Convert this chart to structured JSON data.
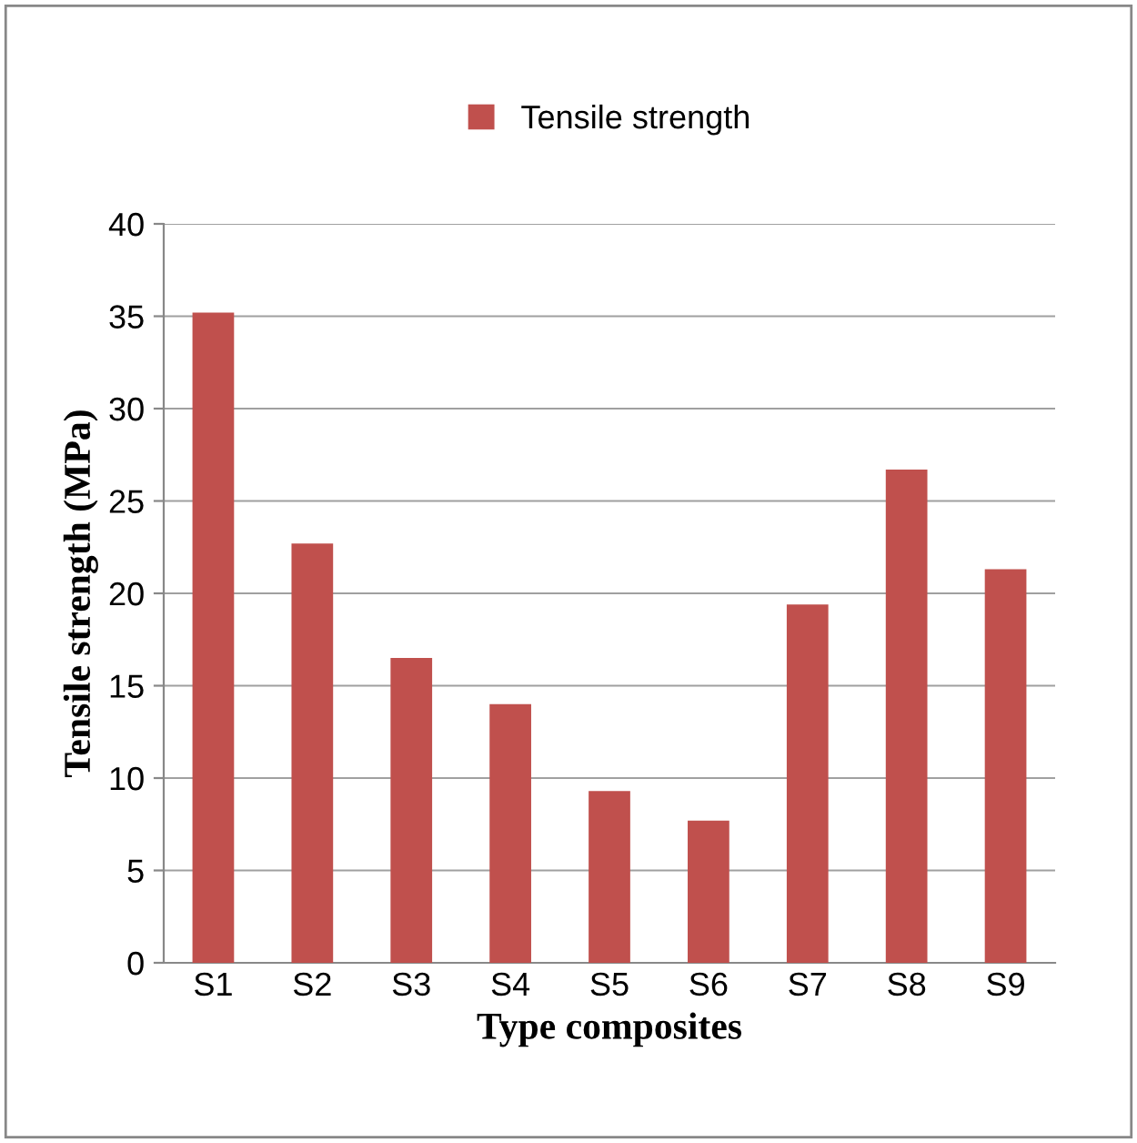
{
  "chart_data": {
    "type": "bar",
    "xlabel": "Type composites",
    "ylabel": "Tensile strength (MPa)",
    "categories": [
      "S1",
      "S2",
      "S3",
      "S4",
      "S5",
      "S6",
      "S7",
      "S8",
      "S9"
    ],
    "series": [
      {
        "name": "Tensile strength",
        "color": "#c0504d",
        "values": [
          35.2,
          22.7,
          16.5,
          14.0,
          9.3,
          7.7,
          19.4,
          26.7,
          21.3
        ]
      }
    ],
    "ylim": [
      0,
      40
    ],
    "yticks": [
      0,
      5,
      10,
      15,
      20,
      25,
      30,
      35,
      40
    ],
    "grid": "y",
    "legend": "top"
  }
}
